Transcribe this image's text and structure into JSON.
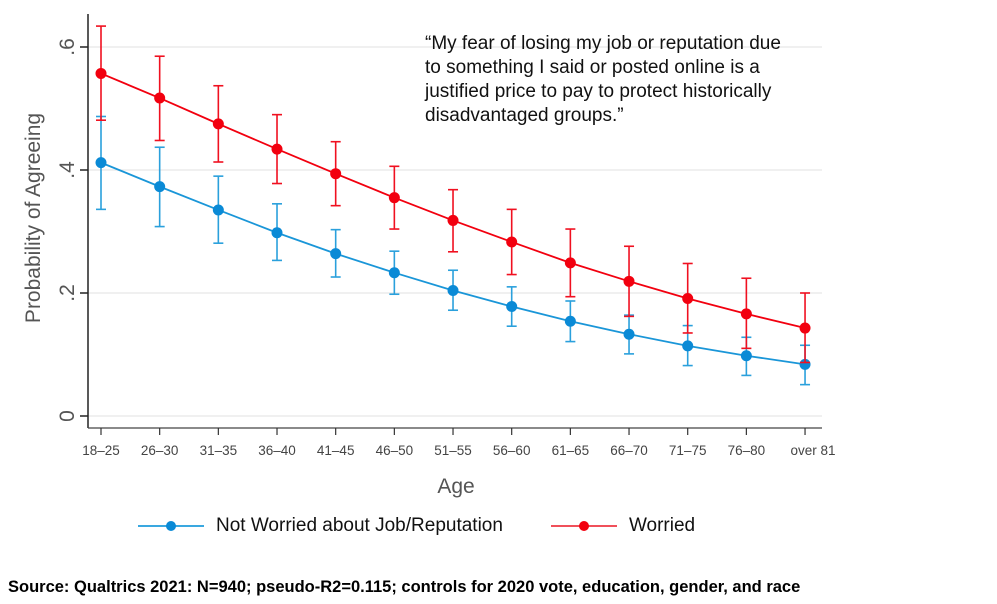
{
  "chart_data": {
    "type": "line",
    "title": "",
    "xlabel": "Age",
    "ylabel": "Probability of Agreeing",
    "ylim": [
      0,
      0.65
    ],
    "yticks": [
      0,
      0.2,
      0.4,
      0.6
    ],
    "ytick_labels": [
      "0",
      ".2",
      ".4",
      ".6"
    ],
    "grid": true,
    "legend_position": "bottom",
    "categories": [
      "18–25",
      "26–30",
      "31–35",
      "36–40",
      "41–45",
      "46–50",
      "51–55",
      "56–60",
      "61–65",
      "66–70",
      "71–75",
      "76–80",
      "over 81"
    ],
    "series": [
      {
        "name": "Not Worried about Job/Reputation",
        "color": "#0a8ad6",
        "values": [
          0.412,
          0.373,
          0.335,
          0.298,
          0.264,
          0.233,
          0.204,
          0.178,
          0.154,
          0.133,
          0.114,
          0.098,
          0.084
        ],
        "ci_upper": [
          0.487,
          0.437,
          0.39,
          0.345,
          0.303,
          0.268,
          0.237,
          0.21,
          0.187,
          0.164,
          0.147,
          0.128,
          0.115
        ],
        "ci_lower": [
          0.336,
          0.308,
          0.281,
          0.253,
          0.226,
          0.198,
          0.172,
          0.146,
          0.121,
          0.101,
          0.082,
          0.066,
          0.051
        ]
      },
      {
        "name": "Worried",
        "color": "#f2000f",
        "values": [
          0.557,
          0.517,
          0.475,
          0.434,
          0.394,
          0.355,
          0.318,
          0.283,
          0.249,
          0.219,
          0.191,
          0.166,
          0.143
        ],
        "ci_upper": [
          0.634,
          0.585,
          0.537,
          0.49,
          0.446,
          0.406,
          0.368,
          0.336,
          0.304,
          0.276,
          0.248,
          0.224,
          0.2
        ],
        "ci_lower": [
          0.481,
          0.448,
          0.413,
          0.378,
          0.342,
          0.304,
          0.267,
          0.23,
          0.194,
          0.162,
          0.135,
          0.11,
          0.087
        ]
      }
    ],
    "annotation": "“My fear of losing my job or reputation due to something I said or posted online is a justified price to pay to protect historically disadvantaged groups.”"
  },
  "quote_lines": [
    "“My fear of losing my job or reputation due",
    "to something I said or posted online is a",
    "justified price to pay to protect historically",
    "disadvantaged groups.”"
  ],
  "legend": {
    "items": [
      {
        "label": "Not Worried about Job/Reputation",
        "color": "#0a8ad6",
        "line_color": "#3aa8e0"
      },
      {
        "label": "Worried",
        "color": "#f2000f",
        "line_color": "#f0505a"
      }
    ]
  },
  "source_note": "Source: Qualtrics 2021: N=940; pseudo-R2=0.115; controls for 2020 vote, education, gender, and race"
}
